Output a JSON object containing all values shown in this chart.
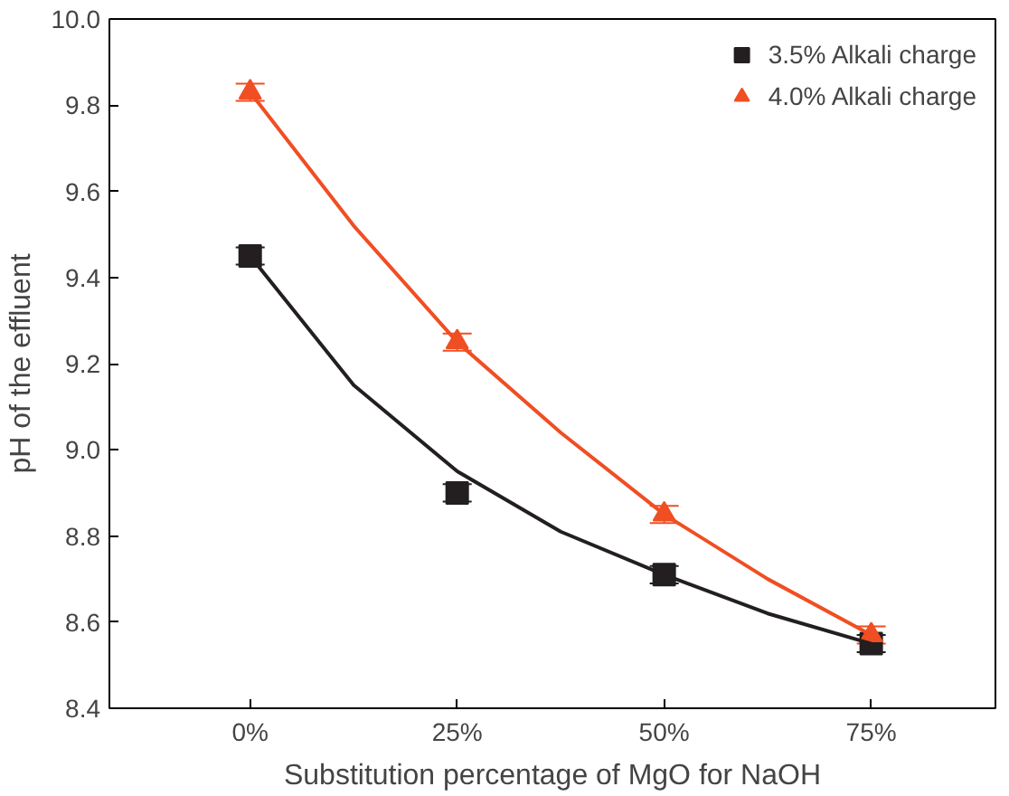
{
  "chart_data": {
    "type": "scatter",
    "xlabel": "Substitution percentage of MgO for NaOH",
    "ylabel": "pH of the effluent",
    "x": [
      0,
      25,
      50,
      75
    ],
    "xlim": [
      -17,
      90
    ],
    "xticks": [
      {
        "value": 0,
        "label": "0%"
      },
      {
        "value": 25,
        "label": "25%"
      },
      {
        "value": 50,
        "label": "50%"
      },
      {
        "value": 75,
        "label": "75%"
      }
    ],
    "ylim": [
      8.4,
      10.0
    ],
    "yticks": [
      {
        "value": 8.4,
        "label": "8.4"
      },
      {
        "value": 8.6,
        "label": "8.6"
      },
      {
        "value": 8.8,
        "label": "8.8"
      },
      {
        "value": 9.0,
        "label": "9.0"
      },
      {
        "value": 9.2,
        "label": "9.2"
      },
      {
        "value": 9.4,
        "label": "9.4"
      },
      {
        "value": 9.6,
        "label": "9.6"
      },
      {
        "value": 9.8,
        "label": "9.8"
      },
      {
        "value": 10.0,
        "label": "10.0"
      }
    ],
    "series": [
      {
        "name": "3.5% Alkali charge",
        "color": "#231f20",
        "marker": "square",
        "values": [
          9.45,
          8.9,
          8.71,
          8.55
        ],
        "errors": [
          0.02,
          0.02,
          0.02,
          0.02
        ]
      },
      {
        "name": "4.0% Alkali charge",
        "color": "#f04e23",
        "marker": "triangle",
        "values": [
          9.83,
          9.25,
          8.85,
          8.57
        ],
        "errors": [
          0.02,
          0.02,
          0.02,
          0.02
        ]
      },
      {
        "type": "line",
        "color": "#231f20",
        "x": [
          0,
          12.5,
          25,
          37.5,
          50,
          62.5,
          75
        ],
        "values": [
          9.45,
          9.15,
          8.95,
          8.81,
          8.71,
          8.62,
          8.55
        ]
      },
      {
        "type": "line",
        "color": "#f04e23",
        "x": [
          0,
          12.5,
          25,
          37.5,
          50,
          62.5,
          75
        ],
        "values": [
          9.83,
          9.52,
          9.25,
          9.04,
          8.85,
          8.7,
          8.57
        ]
      }
    ],
    "legend": "top right",
    "grid": false
  }
}
